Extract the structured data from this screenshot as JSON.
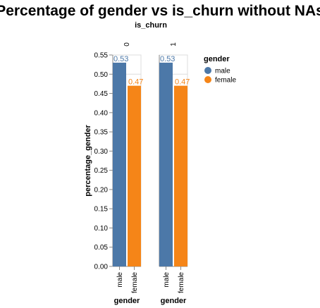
{
  "chart_data": {
    "type": "bar",
    "title": "Percentage of gender vs is_churn without NAs",
    "column_title": "is_churn",
    "facets": [
      "0",
      "1"
    ],
    "categories": [
      "male",
      "female"
    ],
    "series": [
      {
        "facet": "0",
        "values": [
          0.53,
          0.47
        ],
        "labels": [
          "0.53",
          "0.47"
        ]
      },
      {
        "facet": "1",
        "values": [
          0.53,
          0.47
        ],
        "labels": [
          "0.53",
          "0.47"
        ]
      }
    ],
    "xlabel": "gender",
    "ylabel": "percentage_gender",
    "ylim": [
      0,
      0.55
    ],
    "yticks": [
      "0.00",
      "0.05",
      "0.10",
      "0.15",
      "0.20",
      "0.25",
      "0.30",
      "0.35",
      "0.40",
      "0.45",
      "0.50",
      "0.55"
    ],
    "legend": {
      "title": "gender",
      "position": "right",
      "items": [
        {
          "label": "male",
          "color": "#4c78a8"
        },
        {
          "label": "female",
          "color": "#f58518"
        }
      ]
    },
    "colors": {
      "male": "#4c78a8",
      "female": "#f58518"
    }
  }
}
